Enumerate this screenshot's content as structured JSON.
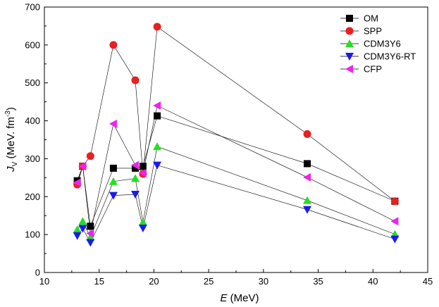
{
  "chart_data": {
    "type": "line",
    "title": "",
    "xlabel": {
      "italic": "E",
      "rest": " (MeV)"
    },
    "ylabel": {
      "italic": "J",
      "sub": "V",
      "rest": " (MeV. fm",
      "sup": "-3",
      "close": ")"
    },
    "xlim": [
      10,
      45
    ],
    "ylim": [
      0,
      700
    ],
    "xticks": [
      10,
      15,
      20,
      25,
      30,
      35,
      40,
      45
    ],
    "yticks": [
      0,
      100,
      200,
      300,
      400,
      500,
      600,
      700
    ],
    "x": [
      13.0,
      13.5,
      14.2,
      16.3,
      18.3,
      19.0,
      20.3,
      34.0,
      42.0
    ],
    "legend_position": "top-right",
    "series": [
      {
        "name": "OM",
        "marker": "square",
        "color": "#000000",
        "values": [
          242,
          280,
          122,
          275,
          275,
          280,
          413,
          287,
          188
        ]
      },
      {
        "name": "SPP",
        "marker": "circle",
        "color": "#e8201e",
        "values": [
          232,
          280,
          307,
          600,
          507,
          260,
          648,
          365,
          188
        ]
      },
      {
        "name": "CDM3Y6",
        "marker": "triangle-up",
        "color": "#22e022",
        "values": [
          113,
          135,
          93,
          240,
          248,
          133,
          332,
          190,
          101
        ]
      },
      {
        "name": "CDM3Y6-RT",
        "marker": "triangle-down",
        "color": "#1a1aee",
        "values": [
          97,
          116,
          79,
          203,
          206,
          117,
          283,
          166,
          88
        ]
      },
      {
        "name": "CFP",
        "marker": "triangle-left",
        "color": "#ee22ee",
        "values": [
          237,
          280,
          103,
          392,
          283,
          262,
          440,
          251,
          135
        ]
      }
    ]
  }
}
